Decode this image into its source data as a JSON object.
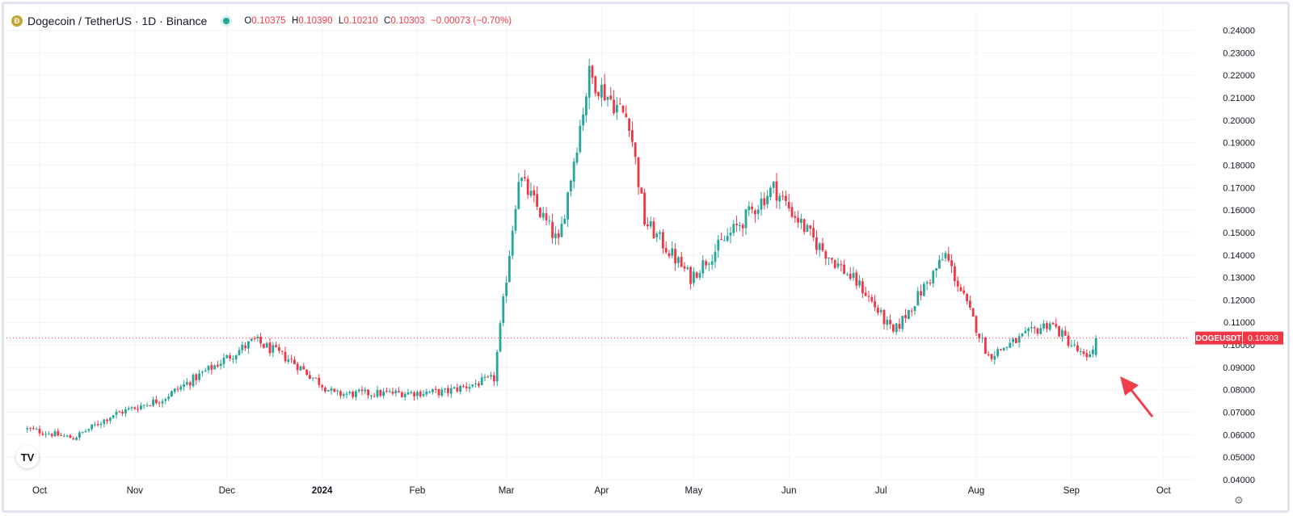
{
  "header": {
    "coin_icon": "dogecoin-icon",
    "title": "Dogecoin / TetherUS · 1D · Binance",
    "status_dot": "market-open-dot",
    "ohlc": {
      "o_label": "O",
      "o": "0.10375",
      "h_label": "H",
      "h": "0.10390",
      "l_label": "L",
      "l": "0.10210",
      "c_label": "C",
      "c": "0.10303",
      "change": "−0.00073 (−0.70%)"
    }
  },
  "price_badge": {
    "symbol": "DOGEUSDT",
    "value": "0.10303"
  },
  "logo_text": "TV",
  "colors": {
    "up": "#26a69a",
    "down": "#f23645",
    "grid": "#f0f3fa",
    "text": "#131722",
    "arrow": "#f03e4c"
  },
  "chart_data": {
    "type": "candlestick",
    "timeframe": "1D",
    "y_ticks": [
      "0.24000",
      "0.23000",
      "0.22000",
      "0.21000",
      "0.20000",
      "0.19000",
      "0.18000",
      "0.17000",
      "0.16000",
      "0.15000",
      "0.14000",
      "0.13000",
      "0.12000",
      "0.11000",
      "0.10000",
      "0.09000",
      "0.08000",
      "0.07000",
      "0.06000",
      "0.05000",
      "0.04000"
    ],
    "ylim": [
      0.04,
      0.24
    ],
    "x_ticks": [
      "Oct",
      "Nov",
      "Dec",
      "2024",
      "Feb",
      "Mar",
      "Apr",
      "May",
      "Jun",
      "Jul",
      "Aug",
      "Sep",
      "Oct"
    ],
    "last_price": 0.10303,
    "approx_close_path": [
      {
        "date": "2023-09-27",
        "value": 0.0625
      },
      {
        "date": "2023-10-12",
        "value": 0.0585
      },
      {
        "date": "2023-10-25",
        "value": 0.069
      },
      {
        "date": "2023-11-10",
        "value": 0.076
      },
      {
        "date": "2023-12-10",
        "value": 0.102
      },
      {
        "date": "2023-12-22",
        "value": 0.093
      },
      {
        "date": "2024-01-05",
        "value": 0.078
      },
      {
        "date": "2024-02-10",
        "value": 0.079
      },
      {
        "date": "2024-02-26",
        "value": 0.085
      },
      {
        "date": "2024-03-05",
        "value": 0.175
      },
      {
        "date": "2024-03-18",
        "value": 0.145
      },
      {
        "date": "2024-03-28",
        "value": 0.22
      },
      {
        "date": "2024-04-10",
        "value": 0.2
      },
      {
        "date": "2024-04-15",
        "value": 0.155
      },
      {
        "date": "2024-04-30",
        "value": 0.13
      },
      {
        "date": "2024-05-12",
        "value": 0.148
      },
      {
        "date": "2024-05-27",
        "value": 0.17
      },
      {
        "date": "2024-06-10",
        "value": 0.145
      },
      {
        "date": "2024-06-25",
        "value": 0.125
      },
      {
        "date": "2024-07-05",
        "value": 0.105
      },
      {
        "date": "2024-07-22",
        "value": 0.14
      },
      {
        "date": "2024-08-05",
        "value": 0.095
      },
      {
        "date": "2024-08-25",
        "value": 0.11
      },
      {
        "date": "2024-09-06",
        "value": 0.093
      },
      {
        "date": "2024-09-09",
        "value": 0.103
      }
    ]
  }
}
